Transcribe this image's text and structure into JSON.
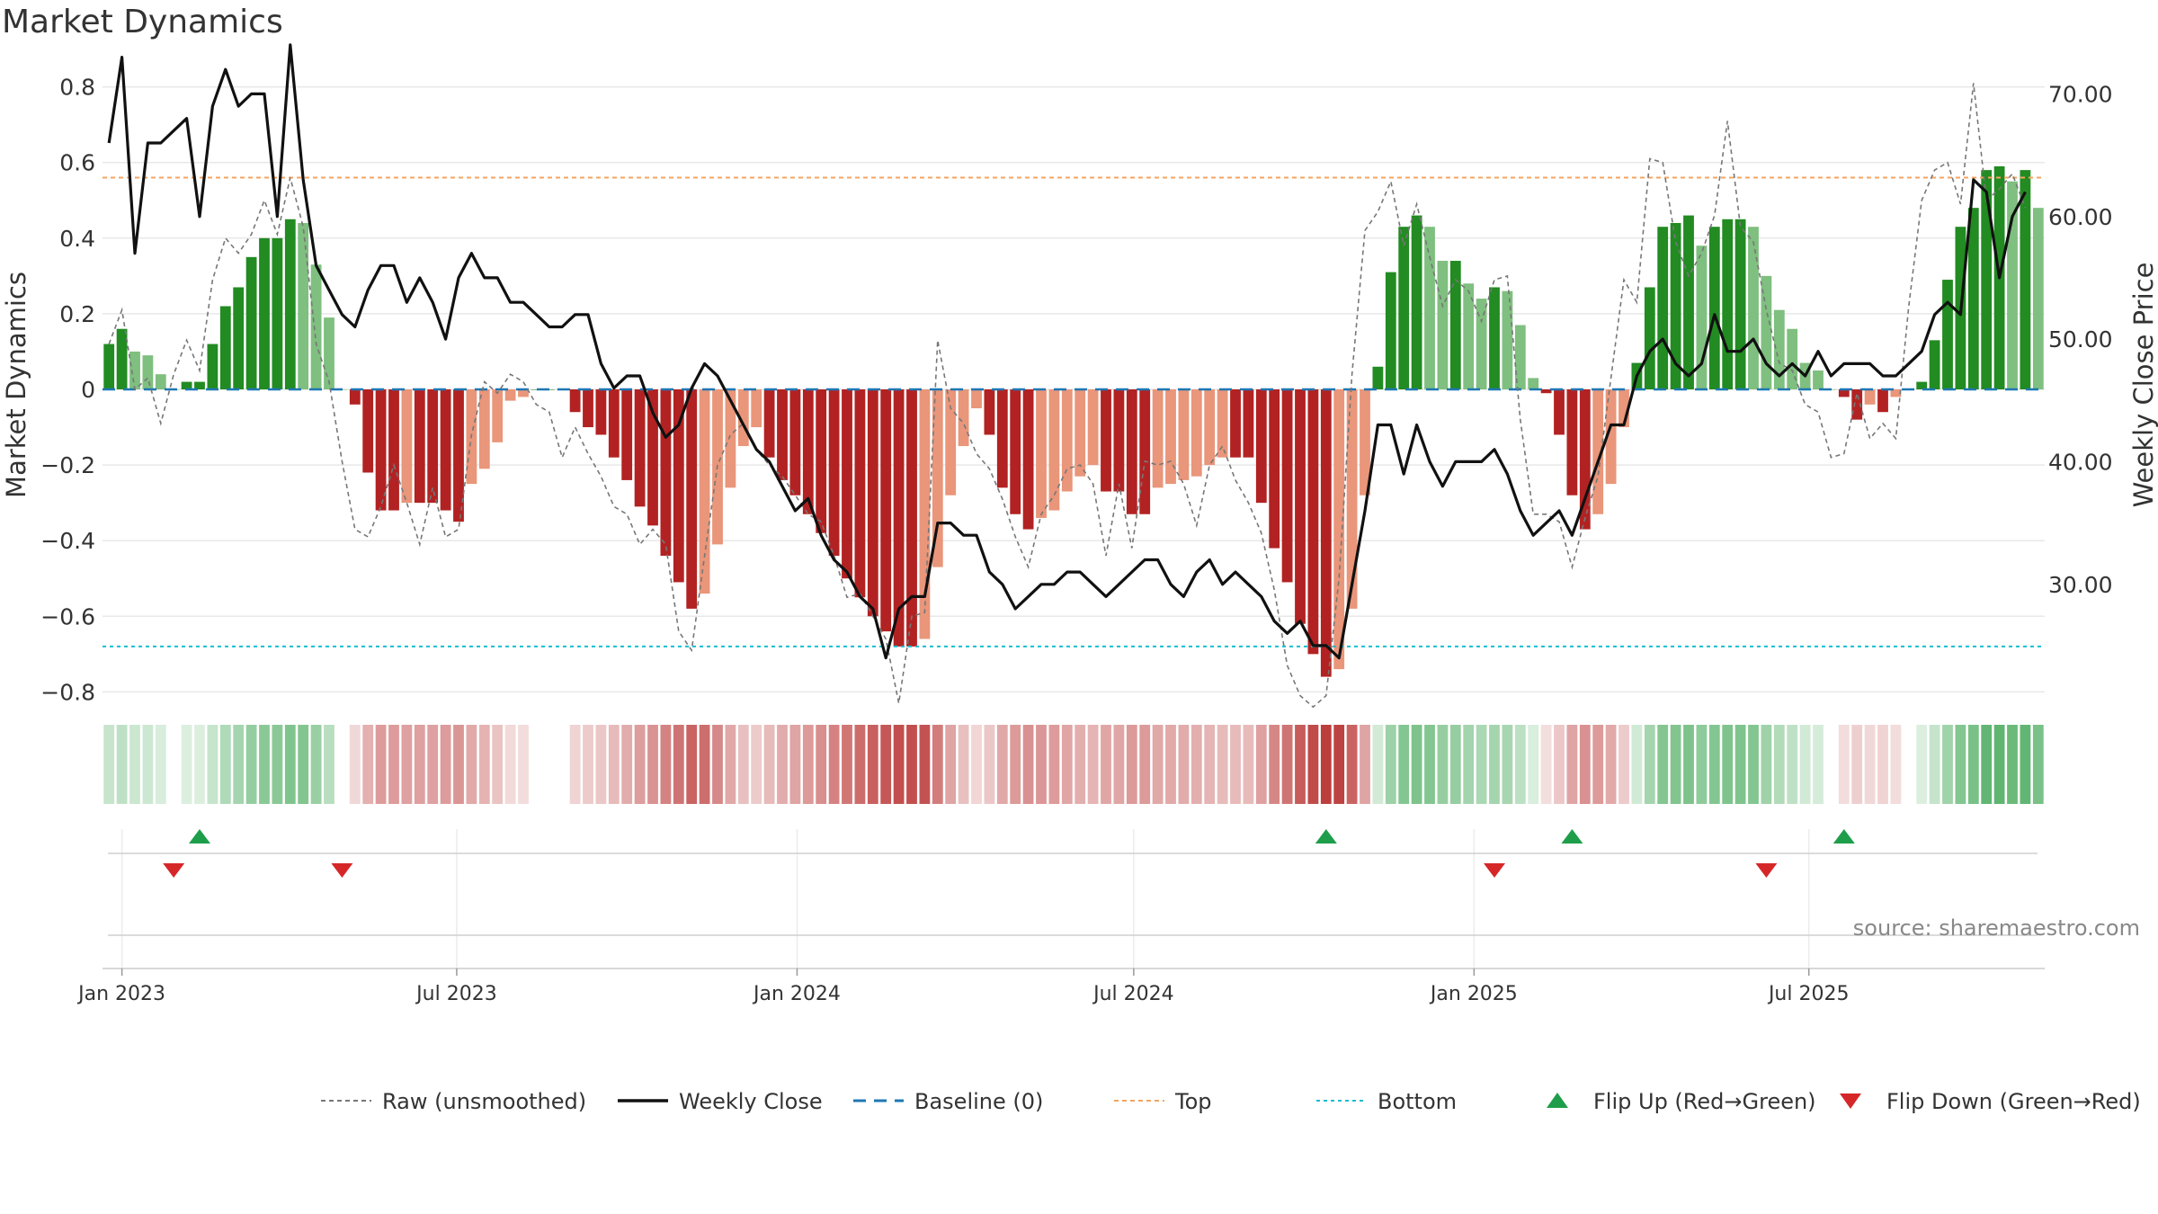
{
  "title": "Market Dynamics",
  "source": "source: sharemaestro.com",
  "colors": {
    "green_strong": "#228B22",
    "green_light": "#7FBF7F",
    "red_strong": "#B22222",
    "red_light": "#E9967A",
    "raw": "#777777",
    "close": "#111111",
    "baseline": "#1f77b4",
    "top": "#F4A460",
    "bottom": "#17BECF",
    "flip_up": "#1E9E4A",
    "flip_down": "#D62728"
  },
  "chart_data": {
    "type": "bar",
    "title": "Market Dynamics",
    "ylabel": "Market Dynamics",
    "y2label": "Weekly Close Price",
    "ylim": [
      -0.83,
      0.83
    ],
    "y2lim": [
      20.3,
      71.5
    ],
    "yticks": [
      -0.8,
      -0.6,
      -0.4,
      -0.2,
      0,
      0.2,
      0.4,
      0.6,
      0.8
    ],
    "yticklabels": [
      "−0.8",
      "−0.6",
      "−0.4",
      "−0.2",
      "0",
      "0.2",
      "0.4",
      "0.6",
      "0.8"
    ],
    "y2ticks": [
      30,
      40,
      50,
      60,
      70
    ],
    "y2ticklabels": [
      "30.00",
      "40.00",
      "50.00",
      "60.00",
      "70.00"
    ],
    "x_start": "2022-12-25",
    "xticklabels": [
      "Jan 2023",
      "Jul 2023",
      "Jan 2024",
      "Jul 2024",
      "Jan 2025",
      "Jul 2025"
    ],
    "xtick_dates": [
      "2023-01-01",
      "2023-07-01",
      "2024-01-01",
      "2024-07-01",
      "2025-01-01",
      "2025-07-01"
    ],
    "top_level": 0.56,
    "bottom_level": -0.68,
    "baseline": 0,
    "grid": true,
    "legend_position": "bottom-center",
    "dynamics": [
      0.12,
      0.16,
      0.1,
      0.09,
      0.04,
      0.0,
      0.02,
      0.02,
      0.12,
      0.22,
      0.27,
      0.35,
      0.4,
      0.4,
      0.45,
      0.44,
      0.33,
      0.19,
      0.0,
      -0.04,
      -0.22,
      -0.32,
      -0.32,
      -0.3,
      -0.3,
      -0.3,
      -0.32,
      -0.35,
      -0.25,
      -0.21,
      -0.14,
      -0.03,
      -0.02,
      0.0,
      0.0,
      0.0,
      -0.06,
      -0.1,
      -0.12,
      -0.18,
      -0.24,
      -0.31,
      -0.36,
      -0.44,
      -0.51,
      -0.58,
      -0.54,
      -0.41,
      -0.26,
      -0.15,
      -0.1,
      -0.18,
      -0.24,
      -0.28,
      -0.33,
      -0.38,
      -0.44,
      -0.5,
      -0.55,
      -0.6,
      -0.64,
      -0.68,
      -0.68,
      -0.66,
      -0.47,
      -0.28,
      -0.15,
      -0.05,
      -0.12,
      -0.26,
      -0.33,
      -0.37,
      -0.34,
      -0.32,
      -0.27,
      -0.23,
      -0.2,
      -0.27,
      -0.27,
      -0.33,
      -0.33,
      -0.26,
      -0.25,
      -0.24,
      -0.23,
      -0.2,
      -0.18,
      -0.18,
      -0.18,
      -0.3,
      -0.42,
      -0.51,
      -0.62,
      -0.7,
      -0.76,
      -0.74,
      -0.58,
      -0.28,
      0.06,
      0.31,
      0.43,
      0.46,
      0.43,
      0.34,
      0.34,
      0.28,
      0.24,
      0.27,
      0.26,
      0.17,
      0.03,
      -0.01,
      -0.12,
      -0.28,
      -0.37,
      -0.33,
      -0.25,
      -0.1,
      0.07,
      0.27,
      0.43,
      0.44,
      0.46,
      0.38,
      0.43,
      0.45,
      0.45,
      0.43,
      0.3,
      0.21,
      0.16,
      0.07,
      0.05,
      0.0,
      -0.02,
      -0.08,
      -0.04,
      -0.06,
      -0.02,
      0.0,
      0.02,
      0.13,
      0.29,
      0.43,
      0.48,
      0.58,
      0.59,
      0.55,
      0.58,
      0.48
    ],
    "raw": [
      0.12,
      0.21,
      0.0,
      0.03,
      -0.09,
      0.04,
      0.13,
      0.05,
      0.29,
      0.4,
      0.36,
      0.41,
      0.5,
      0.41,
      0.56,
      0.43,
      0.12,
      0.02,
      -0.19,
      -0.37,
      -0.39,
      -0.31,
      -0.2,
      -0.3,
      -0.41,
      -0.26,
      -0.39,
      -0.37,
      -0.12,
      0.02,
      -0.01,
      0.04,
      0.02,
      -0.04,
      -0.06,
      -0.18,
      -0.1,
      -0.17,
      -0.23,
      -0.31,
      -0.33,
      -0.41,
      -0.37,
      -0.41,
      -0.64,
      -0.69,
      -0.44,
      -0.2,
      -0.12,
      -0.09,
      -0.16,
      -0.2,
      -0.23,
      -0.28,
      -0.33,
      -0.35,
      -0.44,
      -0.55,
      -0.54,
      -0.6,
      -0.66,
      -0.83,
      -0.6,
      -0.59,
      0.13,
      -0.05,
      -0.09,
      -0.17,
      -0.21,
      -0.29,
      -0.39,
      -0.47,
      -0.33,
      -0.28,
      -0.21,
      -0.2,
      -0.25,
      -0.44,
      -0.25,
      -0.42,
      -0.19,
      -0.2,
      -0.19,
      -0.25,
      -0.36,
      -0.2,
      -0.15,
      -0.24,
      -0.3,
      -0.38,
      -0.53,
      -0.73,
      -0.81,
      -0.84,
      -0.81,
      -0.5,
      0.04,
      0.42,
      0.47,
      0.55,
      0.38,
      0.49,
      0.35,
      0.22,
      0.29,
      0.26,
      0.18,
      0.29,
      0.3,
      -0.08,
      -0.33,
      -0.33,
      -0.35,
      -0.47,
      -0.34,
      -0.23,
      0.03,
      0.29,
      0.23,
      0.61,
      0.6,
      0.39,
      0.3,
      0.36,
      0.46,
      0.71,
      0.43,
      0.39,
      0.21,
      0.07,
      0.05,
      -0.04,
      -0.06,
      -0.18,
      -0.17,
      -0.01,
      -0.13,
      -0.09,
      -0.13,
      0.22,
      0.5,
      0.58,
      0.6,
      0.49,
      0.81,
      0.5,
      0.53,
      0.57,
      0.48
    ],
    "close": [
      66,
      73,
      57,
      66,
      66,
      67,
      68,
      60,
      69,
      72,
      69,
      70,
      70,
      60,
      74,
      63,
      56,
      54,
      52,
      51,
      54,
      56,
      56,
      53,
      55,
      53,
      50,
      55,
      57,
      55,
      55,
      53,
      53,
      52,
      51,
      51,
      52,
      52,
      48,
      46,
      47,
      47,
      44,
      42,
      43,
      46,
      48,
      47,
      45,
      43,
      41,
      40,
      38,
      36,
      37,
      34,
      32,
      31,
      29,
      28,
      24,
      28,
      29,
      29,
      35,
      35,
      34,
      34,
      31,
      30,
      28,
      29,
      30,
      30,
      31,
      31,
      30,
      29,
      30,
      31,
      32,
      32,
      30,
      29,
      31,
      32,
      30,
      31,
      30,
      29,
      27,
      26,
      27,
      25,
      25,
      24,
      30,
      36,
      43,
      43,
      39,
      43,
      40,
      38,
      40,
      40,
      40,
      41,
      39,
      36,
      34,
      35,
      36,
      34,
      37,
      40,
      43,
      43,
      47,
      49,
      50,
      48,
      47,
      48,
      52,
      49,
      49,
      50,
      48,
      47,
      48,
      47,
      49,
      47,
      48,
      48,
      48,
      47,
      47,
      48,
      49,
      52,
      53,
      52,
      63,
      62,
      55,
      60,
      62
    ],
    "flip_up_weeks": [
      7,
      94,
      113,
      134
    ],
    "flip_down_weeks": [
      5,
      18,
      107,
      128
    ]
  },
  "legend": [
    {
      "key": "raw",
      "label": "Raw (unsmoothed)"
    },
    {
      "key": "close",
      "label": "Weekly Close"
    },
    {
      "key": "baseline",
      "label": "Baseline (0)"
    },
    {
      "key": "top",
      "label": "Top"
    },
    {
      "key": "bottom",
      "label": "Bottom"
    },
    {
      "key": "flip_up",
      "label": "Flip Up (Red→Green)"
    },
    {
      "key": "flip_down",
      "label": "Flip Down (Green→Red)"
    }
  ]
}
